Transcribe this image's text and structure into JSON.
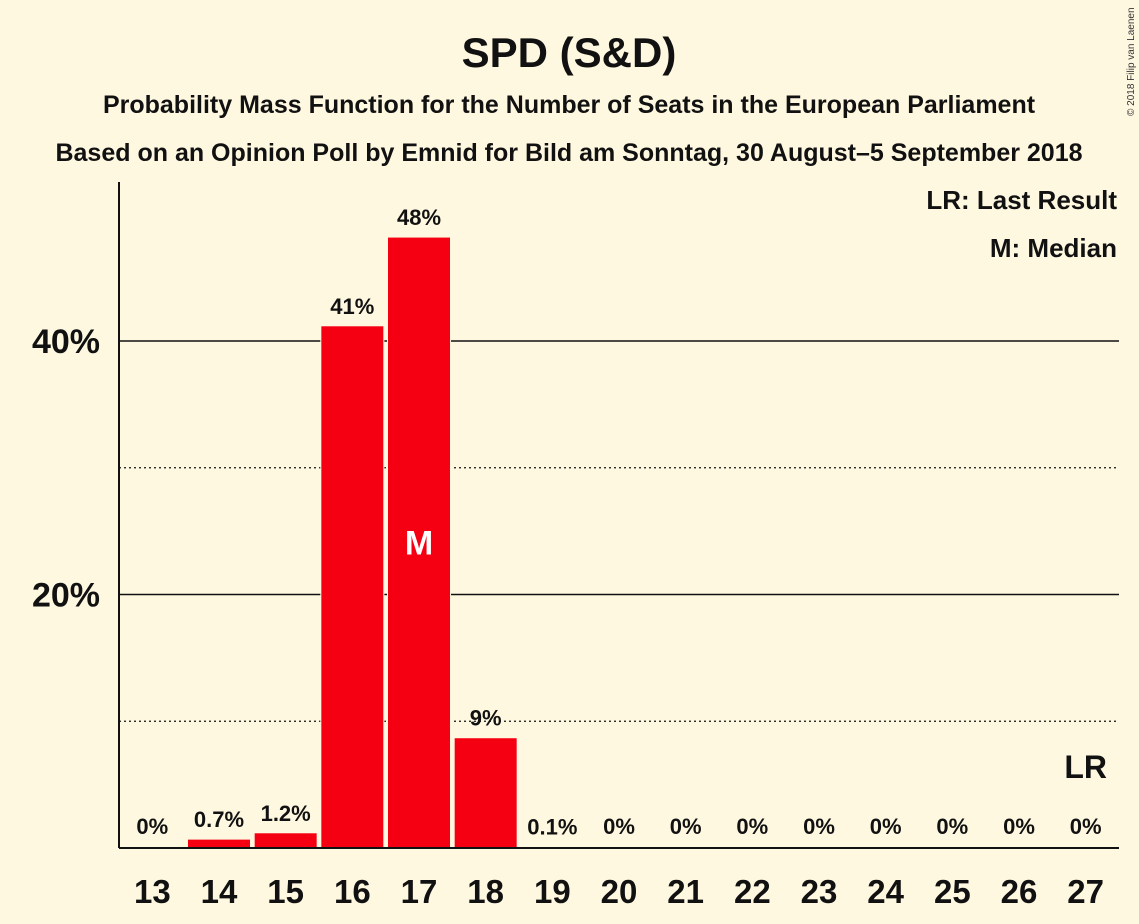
{
  "chart_data": {
    "type": "bar",
    "title": "SPD (S&D)",
    "subtitle": "Probability Mass Function for the Number of Seats in the European Parliament",
    "subtitle2": "Based on an Opinion Poll by Emnid for Bild am Sonntag, 30 August–5 September 2018",
    "legend": [
      "LR: Last Result",
      "M: Median"
    ],
    "copyright": "© 2018 Filip van Laenen",
    "categories": [
      "13",
      "14",
      "15",
      "16",
      "17",
      "18",
      "19",
      "20",
      "21",
      "22",
      "23",
      "24",
      "25",
      "26",
      "27"
    ],
    "values": [
      0,
      0.7,
      1.2,
      41.2,
      48.2,
      8.7,
      0.1,
      0,
      0,
      0,
      0,
      0,
      0,
      0,
      0
    ],
    "labels": [
      "0%",
      "0.7%",
      "1.2%",
      "41%",
      "48%",
      "9%",
      "0.1%",
      "0%",
      "0%",
      "0%",
      "0%",
      "0%",
      "0%",
      "0%",
      "0%"
    ],
    "yticks": [
      {
        "value": 20,
        "label": "20%"
      },
      {
        "value": 40,
        "label": "40%"
      }
    ],
    "minor_grid": [
      10,
      30
    ],
    "ylim": [
      0,
      52
    ],
    "median_category": "17",
    "median_label": "M",
    "last_result_category": "27",
    "last_result_label": "LR",
    "colors": {
      "bar": "#f50012",
      "background": "#fff8e1",
      "text": "#111111"
    }
  }
}
